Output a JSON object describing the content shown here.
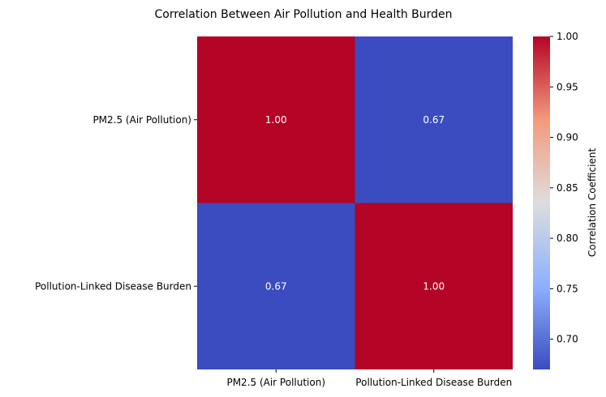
{
  "chart_data": {
    "type": "heatmap",
    "title": "Correlation Between Air Pollution and Health Burden",
    "row_labels": [
      "PM2.5 (Air Pollution)",
      "Pollution-Linked Disease Burden"
    ],
    "col_labels": [
      "PM2.5 (Air Pollution)",
      "Pollution-Linked Disease Burden"
    ],
    "values": [
      [
        1.0,
        0.67
      ],
      [
        0.67,
        1.0
      ]
    ],
    "value_labels": [
      [
        "1.00",
        "0.67"
      ],
      [
        "0.67",
        "1.00"
      ]
    ],
    "colormap": "coolwarm",
    "low_color": "#3b4cc0",
    "high_color": "#b40426",
    "colorbar": {
      "label": "Correlation Coefficient",
      "range": [
        0.67,
        1.0
      ],
      "ticks": [
        "0.70",
        "0.75",
        "0.80",
        "0.85",
        "0.90",
        "0.95",
        "1.00"
      ]
    },
    "legend_position": "right",
    "grid": false
  }
}
